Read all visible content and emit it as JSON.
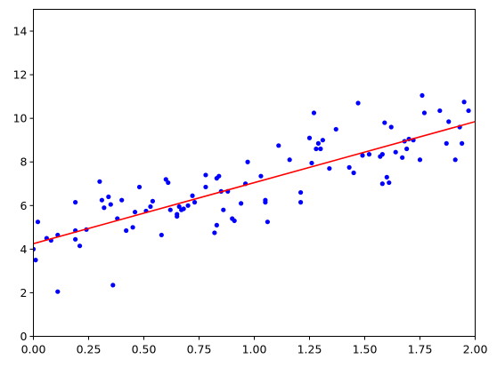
{
  "chart_data": {
    "type": "scatter",
    "title": "",
    "xlabel": "",
    "ylabel": "",
    "xlim": [
      0,
      2
    ],
    "ylim": [
      0,
      15
    ],
    "grid": false,
    "xticks": [
      {
        "value": 0.0,
        "label": "0.00"
      },
      {
        "value": 0.25,
        "label": "0.25"
      },
      {
        "value": 0.5,
        "label": "0.50"
      },
      {
        "value": 0.75,
        "label": "0.75"
      },
      {
        "value": 1.0,
        "label": "1.00"
      },
      {
        "value": 1.25,
        "label": "1.25"
      },
      {
        "value": 1.5,
        "label": "1.50"
      },
      {
        "value": 1.75,
        "label": "1.75"
      },
      {
        "value": 2.0,
        "label": "2.00"
      }
    ],
    "yticks": [
      {
        "value": 0,
        "label": "0"
      },
      {
        "value": 2,
        "label": "2"
      },
      {
        "value": 4,
        "label": "4"
      },
      {
        "value": 6,
        "label": "6"
      },
      {
        "value": 8,
        "label": "8"
      },
      {
        "value": 10,
        "label": "10"
      },
      {
        "value": 12,
        "label": "12"
      },
      {
        "value": 14,
        "label": "14"
      }
    ],
    "series": [
      {
        "type": "scatter",
        "color": "#0000ff",
        "x": [
          0.0,
          0.01,
          0.02,
          0.06,
          0.08,
          0.11,
          0.11,
          0.19,
          0.19,
          0.19,
          0.21,
          0.24,
          0.3,
          0.31,
          0.32,
          0.34,
          0.35,
          0.36,
          0.38,
          0.4,
          0.42,
          0.45,
          0.46,
          0.48,
          0.51,
          0.53,
          0.54,
          0.58,
          0.6,
          0.61,
          0.62,
          0.65,
          0.65,
          0.66,
          0.67,
          0.68,
          0.7,
          0.72,
          0.73,
          0.78,
          0.78,
          0.82,
          0.83,
          0.83,
          0.84,
          0.85,
          0.86,
          0.88,
          0.9,
          0.91,
          0.94,
          0.96,
          0.97,
          1.03,
          1.05,
          1.05,
          1.06,
          1.11,
          1.16,
          1.21,
          1.21,
          1.25,
          1.26,
          1.27,
          1.28,
          1.29,
          1.3,
          1.31,
          1.34,
          1.37,
          1.43,
          1.45,
          1.47,
          1.49,
          1.52,
          1.57,
          1.58,
          1.58,
          1.59,
          1.6,
          1.61,
          1.62,
          1.64,
          1.67,
          1.68,
          1.69,
          1.7,
          1.72,
          1.75,
          1.76,
          1.77,
          1.84,
          1.87,
          1.88,
          1.91,
          1.93,
          1.94,
          1.95,
          1.97
        ],
        "y": [
          4.0,
          3.5,
          5.25,
          4.5,
          4.4,
          4.65,
          2.05,
          6.15,
          4.85,
          4.45,
          4.15,
          4.9,
          7.1,
          6.25,
          5.9,
          6.4,
          6.05,
          2.35,
          5.4,
          6.25,
          4.85,
          5.0,
          5.7,
          6.85,
          5.75,
          5.95,
          6.2,
          4.65,
          7.2,
          7.05,
          5.8,
          5.6,
          5.5,
          5.95,
          5.8,
          5.85,
          6.0,
          6.45,
          6.15,
          6.85,
          7.4,
          4.75,
          7.25,
          5.1,
          7.35,
          6.65,
          5.8,
          6.65,
          5.4,
          5.3,
          6.1,
          7.0,
          8.0,
          7.35,
          6.25,
          6.15,
          5.25,
          8.75,
          8.1,
          6.6,
          6.15,
          9.1,
          7.95,
          10.25,
          8.6,
          8.85,
          8.6,
          9.0,
          7.7,
          9.5,
          7.75,
          7.5,
          10.7,
          8.3,
          8.35,
          8.25,
          8.35,
          7.0,
          9.8,
          7.3,
          7.05,
          9.6,
          8.45,
          8.2,
          8.95,
          8.6,
          9.05,
          9.0,
          8.1,
          11.05,
          10.25,
          10.35,
          8.85,
          9.85,
          8.1,
          9.6,
          8.85,
          10.75,
          10.35
        ]
      },
      {
        "type": "line",
        "color": "#ff0000",
        "x": [
          0,
          2
        ],
        "y": [
          4.25,
          9.85
        ]
      }
    ]
  }
}
